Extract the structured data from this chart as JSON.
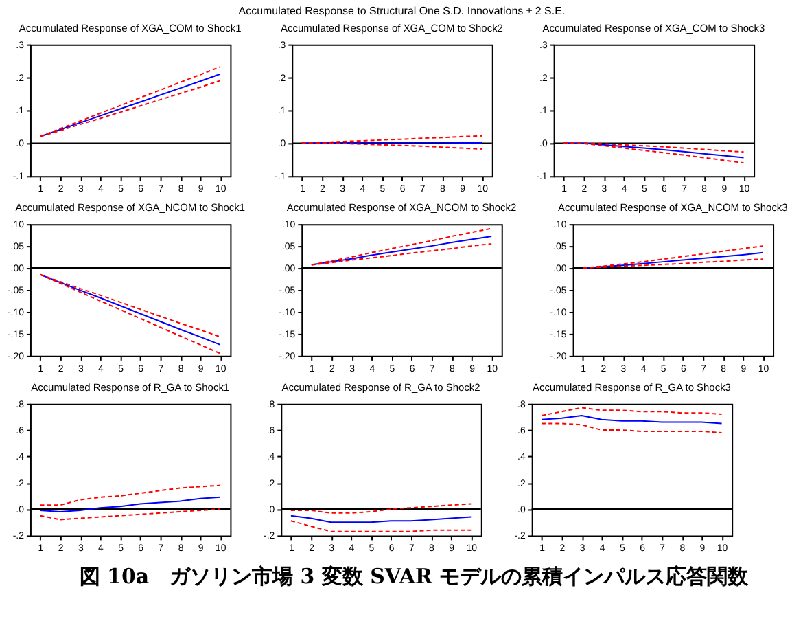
{
  "chart_data": [
    {
      "type": "other",
      "title": "Accumulated Response to Structural One S.D. Innovations ± 2 S.E."
    },
    {
      "type": "line",
      "title": "Accumulated Response of XGA_COM to Shock1",
      "x": [
        1,
        2,
        3,
        4,
        5,
        6,
        7,
        8,
        9,
        10
      ],
      "xlim": [
        0.5,
        10.5
      ],
      "xticks": [
        1,
        2,
        3,
        4,
        5,
        6,
        7,
        8,
        9,
        10
      ],
      "ylim": [
        -0.1,
        0.3
      ],
      "yticks": [
        {
          "value": -0.1,
          "label": "-.1"
        },
        {
          "value": 0,
          "label": ".0"
        },
        {
          "value": 0.1,
          "label": ".1"
        },
        {
          "value": 0.2,
          "label": ".2"
        },
        {
          "value": 0.3,
          "label": ".3"
        }
      ],
      "ref_lines": [
        {
          "axis": "y",
          "value": 0,
          "color": "#000000"
        }
      ],
      "series": [
        {
          "color": "#0000ff",
          "line_style": "solid",
          "values": [
            0.02,
            0.041,
            0.062,
            0.083,
            0.104,
            0.125,
            0.146,
            0.167,
            0.188,
            0.21
          ]
        },
        {
          "color": "#ff0000",
          "line_style": "dashed",
          "values": [
            0.02,
            0.044,
            0.067,
            0.091,
            0.114,
            0.138,
            0.161,
            0.185,
            0.208,
            0.232
          ]
        },
        {
          "color": "#ff0000",
          "line_style": "dashed",
          "values": [
            0.02,
            0.038,
            0.057,
            0.075,
            0.094,
            0.113,
            0.132,
            0.151,
            0.17,
            0.19
          ]
        }
      ]
    },
    {
      "type": "line",
      "title": "Accumulated Response of XGA_COM to Shock2",
      "x": [
        1,
        2,
        3,
        4,
        5,
        6,
        7,
        8,
        9,
        10
      ],
      "xlim": [
        0.5,
        10.5
      ],
      "xticks": [
        1,
        2,
        3,
        4,
        5,
        6,
        7,
        8,
        9,
        10
      ],
      "ylim": [
        -0.1,
        0.3
      ],
      "yticks": [
        {
          "value": -0.1,
          "label": "-.1"
        },
        {
          "value": 0,
          "label": ".0"
        },
        {
          "value": 0.1,
          "label": ".1"
        },
        {
          "value": 0.2,
          "label": ".2"
        },
        {
          "value": 0.3,
          "label": ".3"
        }
      ],
      "ref_lines": [
        {
          "axis": "y",
          "value": 0,
          "color": "#000000"
        }
      ],
      "series": [
        {
          "color": "#0000ff",
          "line_style": "solid",
          "values": [
            0,
            0.001,
            0.002,
            0.002,
            0.002,
            0.002,
            0.002,
            0.002,
            0.001,
            0.001
          ]
        },
        {
          "color": "#ff0000",
          "line_style": "dashed",
          "values": [
            0,
            0.002,
            0.005,
            0.007,
            0.01,
            0.012,
            0.015,
            0.017,
            0.02,
            0.022
          ]
        },
        {
          "color": "#ff0000",
          "line_style": "dashed",
          "values": [
            0,
            0,
            -0.001,
            -0.003,
            -0.005,
            -0.007,
            -0.009,
            -0.012,
            -0.015,
            -0.018
          ]
        }
      ]
    },
    {
      "type": "line",
      "title": "Accumulated Response of XGA_COM to Shock3",
      "x": [
        1,
        2,
        3,
        4,
        5,
        6,
        7,
        8,
        9,
        10
      ],
      "xlim": [
        0.5,
        10.5
      ],
      "xticks": [
        1,
        2,
        3,
        4,
        5,
        6,
        7,
        8,
        9,
        10
      ],
      "ylim": [
        -0.1,
        0.3
      ],
      "yticks": [
        {
          "value": -0.1,
          "label": "-.1"
        },
        {
          "value": 0,
          "label": ".0"
        },
        {
          "value": 0.1,
          "label": ".1"
        },
        {
          "value": 0.2,
          "label": ".2"
        },
        {
          "value": 0.3,
          "label": ".3"
        }
      ],
      "ref_lines": [
        {
          "axis": "y",
          "value": 0,
          "color": "#000000"
        }
      ],
      "series": [
        {
          "color": "#0000ff",
          "line_style": "solid",
          "values": [
            0,
            0,
            -0.005,
            -0.01,
            -0.015,
            -0.02,
            -0.026,
            -0.032,
            -0.038,
            -0.044
          ]
        },
        {
          "color": "#ff0000",
          "line_style": "dashed",
          "values": [
            0,
            0,
            -0.002,
            -0.005,
            -0.008,
            -0.011,
            -0.015,
            -0.019,
            -0.023,
            -0.027
          ]
        },
        {
          "color": "#ff0000",
          "line_style": "dashed",
          "values": [
            0,
            -0.001,
            -0.008,
            -0.015,
            -0.022,
            -0.029,
            -0.036,
            -0.044,
            -0.052,
            -0.06
          ]
        }
      ]
    },
    {
      "type": "line",
      "title": "Accumulated Response of XGA_NCOM to Shock1",
      "x": [
        1,
        2,
        3,
        4,
        5,
        6,
        7,
        8,
        9,
        10
      ],
      "xlim": [
        0.5,
        10.5
      ],
      "xticks": [
        1,
        2,
        3,
        4,
        5,
        6,
        7,
        8,
        9,
        10
      ],
      "ylim": [
        -0.2,
        0.1
      ],
      "yticks": [
        {
          "value": -0.2,
          "label": "-.20"
        },
        {
          "value": -0.15,
          "label": "-.15"
        },
        {
          "value": -0.1,
          "label": "-.10"
        },
        {
          "value": -0.05,
          "label": "-.05"
        },
        {
          "value": 0,
          "label": ".00"
        },
        {
          "value": 0.05,
          "label": ".05"
        },
        {
          "value": 0.1,
          "label": ".10"
        }
      ],
      "ref_lines": [
        {
          "axis": "y",
          "value": 0,
          "color": "#000000"
        }
      ],
      "series": [
        {
          "color": "#0000ff",
          "line_style": "solid",
          "values": [
            -0.015,
            -0.033,
            -0.051,
            -0.068,
            -0.086,
            -0.104,
            -0.122,
            -0.14,
            -0.157,
            -0.175
          ]
        },
        {
          "color": "#ff0000",
          "line_style": "dashed",
          "values": [
            -0.015,
            -0.031,
            -0.047,
            -0.062,
            -0.078,
            -0.094,
            -0.11,
            -0.126,
            -0.141,
            -0.157
          ]
        },
        {
          "color": "#ff0000",
          "line_style": "dashed",
          "values": [
            -0.015,
            -0.035,
            -0.055,
            -0.075,
            -0.095,
            -0.115,
            -0.135,
            -0.155,
            -0.175,
            -0.195
          ]
        }
      ]
    },
    {
      "type": "line",
      "title": "Accumulated Response of XGA_NCOM to Shock2",
      "x": [
        1,
        2,
        3,
        4,
        5,
        6,
        7,
        8,
        9,
        10
      ],
      "xlim": [
        0.5,
        10.5
      ],
      "xticks": [
        1,
        2,
        3,
        4,
        5,
        6,
        7,
        8,
        9,
        10
      ],
      "ylim": [
        -0.2,
        0.1
      ],
      "yticks": [
        {
          "value": -0.2,
          "label": "-.20"
        },
        {
          "value": -0.15,
          "label": "-.15"
        },
        {
          "value": -0.1,
          "label": "-.10"
        },
        {
          "value": -0.05,
          "label": "-.05"
        },
        {
          "value": 0,
          "label": ".00"
        },
        {
          "value": 0.05,
          "label": ".05"
        },
        {
          "value": 0.1,
          "label": ".10"
        }
      ],
      "ref_lines": [
        {
          "axis": "y",
          "value": 0,
          "color": "#000000"
        }
      ],
      "series": [
        {
          "color": "#0000ff",
          "line_style": "solid",
          "values": [
            0.007,
            0.014,
            0.021,
            0.029,
            0.036,
            0.043,
            0.05,
            0.058,
            0.065,
            0.072
          ]
        },
        {
          "color": "#ff0000",
          "line_style": "dashed",
          "values": [
            0.007,
            0.016,
            0.025,
            0.035,
            0.044,
            0.053,
            0.062,
            0.072,
            0.081,
            0.09
          ]
        },
        {
          "color": "#ff0000",
          "line_style": "dashed",
          "values": [
            0.007,
            0.012,
            0.018,
            0.023,
            0.028,
            0.034,
            0.039,
            0.044,
            0.05,
            0.055
          ]
        }
      ]
    },
    {
      "type": "line",
      "title": "Accumulated Response of XGA_NCOM to Shock3",
      "x": [
        1,
        2,
        3,
        4,
        5,
        6,
        7,
        8,
        9,
        10
      ],
      "xlim": [
        0.5,
        10.5
      ],
      "xticks": [
        1,
        2,
        3,
        4,
        5,
        6,
        7,
        8,
        9,
        10
      ],
      "ylim": [
        -0.2,
        0.1
      ],
      "yticks": [
        {
          "value": -0.2,
          "label": "-.20"
        },
        {
          "value": -0.15,
          "label": "-.15"
        },
        {
          "value": -0.1,
          "label": "-.10"
        },
        {
          "value": -0.05,
          "label": "-.05"
        },
        {
          "value": 0,
          "label": ".00"
        },
        {
          "value": 0.05,
          "label": ".05"
        },
        {
          "value": 0.1,
          "label": ".10"
        }
      ],
      "ref_lines": [
        {
          "axis": "y",
          "value": 0,
          "color": "#000000"
        }
      ],
      "series": [
        {
          "color": "#0000ff",
          "line_style": "solid",
          "values": [
            0,
            0.003,
            0.006,
            0.01,
            0.014,
            0.018,
            0.022,
            0.026,
            0.03,
            0.035
          ]
        },
        {
          "color": "#ff0000",
          "line_style": "dashed",
          "values": [
            0,
            0.004,
            0.009,
            0.014,
            0.02,
            0.026,
            0.032,
            0.038,
            0.044,
            0.05
          ]
        },
        {
          "color": "#ff0000",
          "line_style": "dashed",
          "values": [
            0,
            0.002,
            0.004,
            0.006,
            0.008,
            0.01,
            0.013,
            0.015,
            0.018,
            0.02
          ]
        }
      ]
    },
    {
      "type": "line",
      "title": "Accumulated Response of R_GA to Shock1",
      "x": [
        1,
        2,
        3,
        4,
        5,
        6,
        7,
        8,
        9,
        10
      ],
      "xlim": [
        0.5,
        10.5
      ],
      "xticks": [
        1,
        2,
        3,
        4,
        5,
        6,
        7,
        8,
        9,
        10
      ],
      "ylim": [
        -0.2,
        0.8
      ],
      "yticks": [
        {
          "value": -0.2,
          "label": "-.2"
        },
        {
          "value": 0,
          "label": ".0"
        },
        {
          "value": 0.2,
          "label": ".2"
        },
        {
          "value": 0.4,
          "label": ".4"
        },
        {
          "value": 0.6,
          "label": ".6"
        },
        {
          "value": 0.8,
          "label": ".8"
        }
      ],
      "ref_lines": [
        {
          "axis": "y",
          "value": 0,
          "color": "#000000"
        }
      ],
      "series": [
        {
          "color": "#0000ff",
          "line_style": "solid",
          "values": [
            -0.01,
            -0.02,
            -0.01,
            0.01,
            0.02,
            0.04,
            0.05,
            0.06,
            0.08,
            0.09
          ]
        },
        {
          "color": "#ff0000",
          "line_style": "dashed",
          "values": [
            0.03,
            0.03,
            0.07,
            0.09,
            0.1,
            0.12,
            0.14,
            0.16,
            0.17,
            0.18
          ]
        },
        {
          "color": "#ff0000",
          "line_style": "dashed",
          "values": [
            -0.05,
            -0.08,
            -0.07,
            -0.06,
            -0.05,
            -0.04,
            -0.03,
            -0.02,
            -0.01,
            0
          ]
        }
      ]
    },
    {
      "type": "line",
      "title": "Accumulated Response of R_GA to Shock2",
      "x": [
        1,
        2,
        3,
        4,
        5,
        6,
        7,
        8,
        9,
        10
      ],
      "xlim": [
        0.5,
        10.5
      ],
      "xticks": [
        1,
        2,
        3,
        4,
        5,
        6,
        7,
        8,
        9,
        10
      ],
      "ylim": [
        -0.2,
        0.8
      ],
      "yticks": [
        {
          "value": -0.2,
          "label": "-.2"
        },
        {
          "value": 0,
          "label": ".0"
        },
        {
          "value": 0.2,
          "label": ".2"
        },
        {
          "value": 0.4,
          "label": ".4"
        },
        {
          "value": 0.6,
          "label": ".6"
        },
        {
          "value": 0.8,
          "label": ".8"
        }
      ],
      "ref_lines": [
        {
          "axis": "y",
          "value": 0,
          "color": "#000000"
        }
      ],
      "series": [
        {
          "color": "#0000ff",
          "line_style": "solid",
          "values": [
            -0.05,
            -0.07,
            -0.1,
            -0.1,
            -0.1,
            -0.09,
            -0.09,
            -0.08,
            -0.07,
            -0.06
          ]
        },
        {
          "color": "#ff0000",
          "line_style": "dashed",
          "values": [
            -0.01,
            -0.01,
            -0.03,
            -0.03,
            -0.02,
            0,
            0.01,
            0.02,
            0.03,
            0.04
          ]
        },
        {
          "color": "#ff0000",
          "line_style": "dashed",
          "values": [
            -0.09,
            -0.13,
            -0.17,
            -0.17,
            -0.17,
            -0.17,
            -0.17,
            -0.16,
            -0.16,
            -0.16
          ]
        }
      ]
    },
    {
      "type": "line",
      "title": "Accumulated Response of R_GA to Shock3",
      "x": [
        1,
        2,
        3,
        4,
        5,
        6,
        7,
        8,
        9,
        10
      ],
      "xlim": [
        0.5,
        10.5
      ],
      "xticks": [
        1,
        2,
        3,
        4,
        5,
        6,
        7,
        8,
        9,
        10
      ],
      "ylim": [
        -0.2,
        0.8
      ],
      "yticks": [
        {
          "value": -0.2,
          "label": "-.2"
        },
        {
          "value": 0,
          "label": ".0"
        },
        {
          "value": 0.2,
          "label": ".2"
        },
        {
          "value": 0.4,
          "label": ".4"
        },
        {
          "value": 0.6,
          "label": ".6"
        },
        {
          "value": 0.8,
          "label": ".8"
        }
      ],
      "ref_lines": [
        {
          "axis": "y",
          "value": 0,
          "color": "#000000"
        }
      ],
      "series": [
        {
          "color": "#0000ff",
          "line_style": "solid",
          "values": [
            0.68,
            0.69,
            0.71,
            0.68,
            0.67,
            0.67,
            0.66,
            0.66,
            0.66,
            0.65
          ]
        },
        {
          "color": "#ff0000",
          "line_style": "dashed",
          "values": [
            0.71,
            0.74,
            0.77,
            0.75,
            0.75,
            0.74,
            0.74,
            0.73,
            0.73,
            0.72
          ]
        },
        {
          "color": "#ff0000",
          "line_style": "dashed",
          "values": [
            0.65,
            0.65,
            0.64,
            0.6,
            0.6,
            0.59,
            0.59,
            0.59,
            0.59,
            0.58
          ]
        }
      ]
    },
    {
      "type": "other",
      "annotations": [
        "図 10a　ガソリン市場 3 変数 SVAR モデルの累積インパルス応答関数"
      ]
    }
  ]
}
